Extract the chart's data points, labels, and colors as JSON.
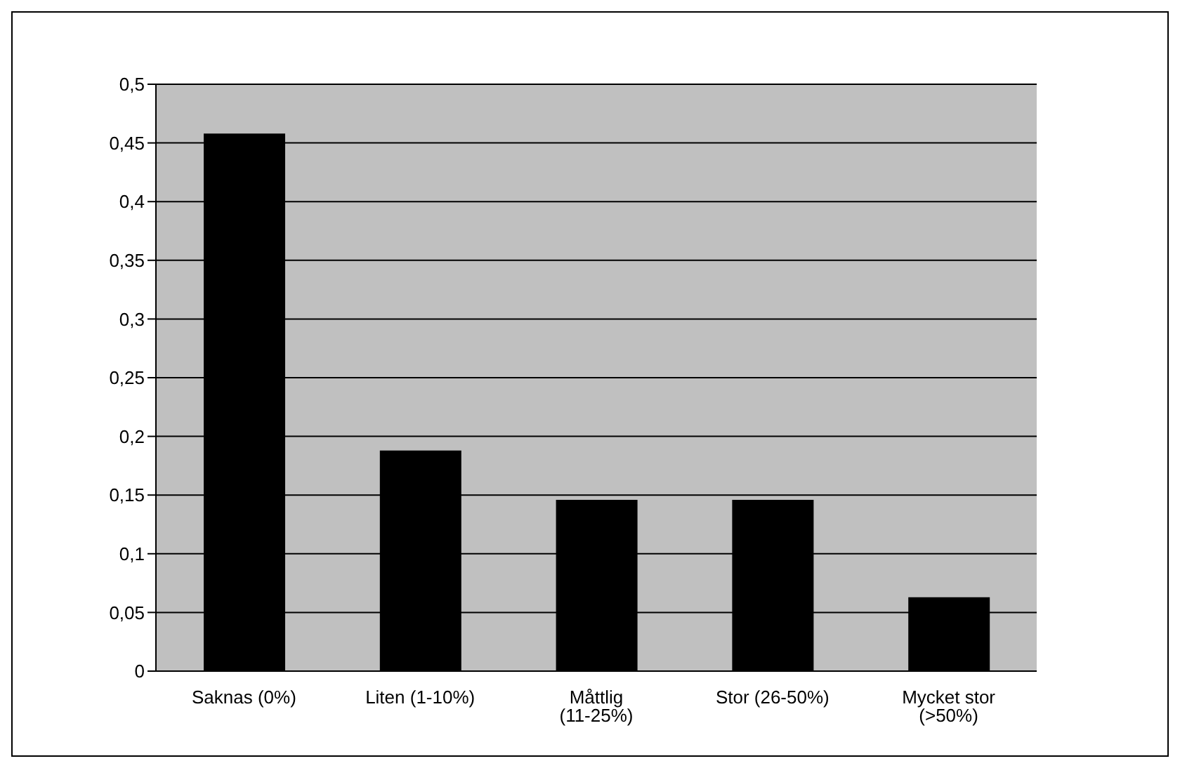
{
  "chart_data": {
    "type": "bar",
    "categories": [
      "Saknas (0%)",
      "Liten (1-10%)",
      "Måttlig (11-25%)",
      "Stor (26-50%)",
      "Mycket stor (>50%)"
    ],
    "values": [
      0.458,
      0.188,
      0.146,
      0.146,
      0.063
    ],
    "color": "#000000",
    "ylim": [
      0,
      0.5
    ],
    "yticks": [
      0,
      {
        "value": 0.05,
        "label": "0,05"
      },
      {
        "value": 0.1,
        "label": "0,1"
      },
      {
        "value": 0.15,
        "label": "0,15"
      },
      {
        "value": 0.2,
        "label": "0,2"
      },
      {
        "value": 0.25,
        "label": "0,25"
      },
      {
        "value": 0.3,
        "label": "0,3"
      },
      {
        "value": 0.35,
        "label": "0,35"
      },
      {
        "value": 0.4,
        "label": "0,4"
      },
      {
        "value": 0.45,
        "label": "0,45"
      },
      {
        "value": 0.5,
        "label": "0,5"
      }
    ],
    "grid": "y"
  }
}
